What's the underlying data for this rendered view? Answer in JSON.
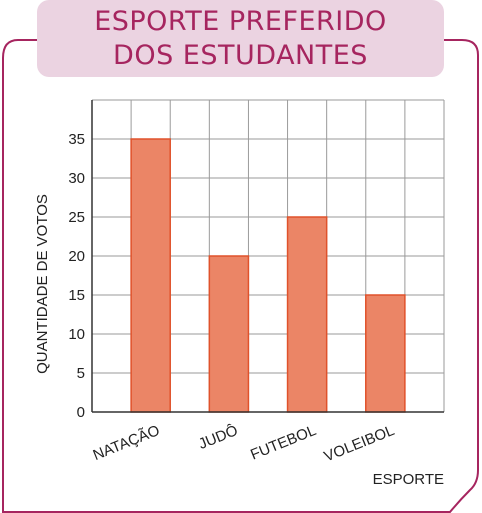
{
  "colors": {
    "frame": "#a6255f",
    "title_bg": "#ebd3e1",
    "title_text": "#a6255f",
    "bar_fill": "#eb8566",
    "bar_stroke": "#e0522b",
    "grid": "#9a9a9a",
    "text": "#222222"
  },
  "chart_data": {
    "type": "bar",
    "title_lines": [
      "ESPORTE PREFERIDO",
      "DOS ESTUDANTES"
    ],
    "categories": [
      "NATAÇÃO",
      "JUDÔ",
      "FUTEBOL",
      "VOLEIBOL"
    ],
    "values": [
      35,
      20,
      25,
      15
    ],
    "xlabel": "ESPORTE",
    "ylabel": "QUANTIDADE DE VOTOS",
    "ylim": [
      0,
      40
    ],
    "yticks": [
      "0",
      "5",
      "10",
      "15",
      "20",
      "25",
      "30",
      "35"
    ],
    "grid": true,
    "legend": "none"
  }
}
